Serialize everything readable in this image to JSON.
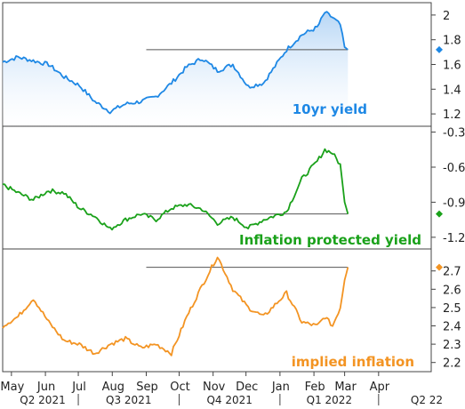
{
  "colors": {
    "yield": "#1e88e5",
    "yield_fill_top": "#b3d4f5",
    "tips": "#1aa11a",
    "inflation": "#f39423",
    "axis": "#444444",
    "refline": "#555555"
  },
  "x_axis": {
    "months": [
      "May",
      "Jun",
      "Jul",
      "Aug",
      "Sep",
      "Oct",
      "Nov",
      "Dec",
      "Jan",
      "Feb",
      "Mar",
      "Apr"
    ],
    "quarters": [
      "Q2 2021",
      "Q3 2021",
      "Q4 2021",
      "Q1 2022",
      "Q2 22"
    ]
  },
  "chart_data": [
    {
      "type": "area",
      "label": "10yr yield",
      "color": "#1e88e5",
      "ylim": [
        1.1,
        2.1
      ],
      "yticks": [
        1.2,
        1.4,
        1.6,
        1.8,
        2.0
      ],
      "ytick_labels": [
        "1.2",
        "1.4",
        "1.6",
        "1.8",
        "2"
      ],
      "x": [
        "2021-04-23",
        "2021-05-07",
        "2021-05-21",
        "2021-06-04",
        "2021-06-18",
        "2021-07-02",
        "2021-07-16",
        "2021-07-30",
        "2021-08-13",
        "2021-08-27",
        "2021-09-10",
        "2021-09-24",
        "2021-10-08",
        "2021-10-22",
        "2021-11-05",
        "2021-11-19",
        "2021-12-03",
        "2021-12-17",
        "2022-01-07",
        "2022-01-21",
        "2022-02-04",
        "2022-02-11",
        "2022-02-18",
        "2022-02-25",
        "2022-03-01",
        "2022-03-04"
      ],
      "y": [
        1.62,
        1.66,
        1.63,
        1.6,
        1.5,
        1.43,
        1.3,
        1.22,
        1.28,
        1.3,
        1.34,
        1.45,
        1.58,
        1.65,
        1.55,
        1.6,
        1.42,
        1.45,
        1.72,
        1.84,
        1.9,
        2.02,
        1.98,
        1.92,
        1.74,
        1.72
      ],
      "reference_line": {
        "value": 1.72,
        "from": "2021-09-01"
      },
      "end_marker": 1.72
    },
    {
      "type": "line",
      "label": "Inflation protected yield",
      "color": "#1aa11a",
      "ylim": [
        -1.3,
        -0.25
      ],
      "yticks": [
        -1.2,
        -0.9,
        -0.6,
        -0.3
      ],
      "ytick_labels": [
        "-1.2",
        "-0.9",
        "-0.6",
        "-0.3"
      ],
      "x": [
        "2021-04-23",
        "2021-05-07",
        "2021-05-21",
        "2021-06-04",
        "2021-06-18",
        "2021-07-02",
        "2021-07-16",
        "2021-07-30",
        "2021-08-13",
        "2021-08-27",
        "2021-09-10",
        "2021-09-24",
        "2021-10-08",
        "2021-10-22",
        "2021-11-05",
        "2021-11-19",
        "2021-12-03",
        "2021-12-17",
        "2022-01-07",
        "2022-01-21",
        "2022-02-04",
        "2022-02-11",
        "2022-02-18",
        "2022-02-25",
        "2022-03-01",
        "2022-03-04"
      ],
      "y": [
        -0.75,
        -0.82,
        -0.88,
        -0.8,
        -0.82,
        -0.95,
        -1.02,
        -1.13,
        -1.05,
        -1.0,
        -1.05,
        -0.95,
        -0.92,
        -0.96,
        -1.08,
        -1.03,
        -1.12,
        -1.05,
        -0.98,
        -0.7,
        -0.55,
        -0.45,
        -0.48,
        -0.58,
        -0.9,
        -1.0
      ],
      "reference_line": {
        "value": -1.0,
        "from": "2021-09-01"
      },
      "end_marker": -1.0
    },
    {
      "type": "line",
      "label": "implied inflation",
      "color": "#f39423",
      "ylim": [
        2.15,
        2.82
      ],
      "yticks": [
        2.2,
        2.3,
        2.4,
        2.5,
        2.6,
        2.7
      ],
      "ytick_labels": [
        "2.2",
        "2.3",
        "2.4",
        "2.5",
        "2.6",
        "2.7"
      ],
      "x": [
        "2021-04-23",
        "2021-05-07",
        "2021-05-21",
        "2021-06-04",
        "2021-06-18",
        "2021-07-02",
        "2021-07-16",
        "2021-07-30",
        "2021-08-13",
        "2021-08-27",
        "2021-09-10",
        "2021-09-24",
        "2021-10-08",
        "2021-10-22",
        "2021-11-05",
        "2021-11-19",
        "2021-12-03",
        "2021-12-17",
        "2022-01-07",
        "2022-01-21",
        "2022-02-04",
        "2022-02-11",
        "2022-02-18",
        "2022-02-25",
        "2022-03-01",
        "2022-03-04"
      ],
      "y": [
        2.4,
        2.45,
        2.55,
        2.42,
        2.32,
        2.3,
        2.25,
        2.3,
        2.33,
        2.28,
        2.3,
        2.25,
        2.45,
        2.62,
        2.78,
        2.6,
        2.5,
        2.45,
        2.58,
        2.42,
        2.4,
        2.45,
        2.4,
        2.5,
        2.65,
        2.72
      ],
      "reference_line": {
        "value": 2.72,
        "from": "2021-09-01"
      },
      "end_marker": 2.72
    }
  ]
}
